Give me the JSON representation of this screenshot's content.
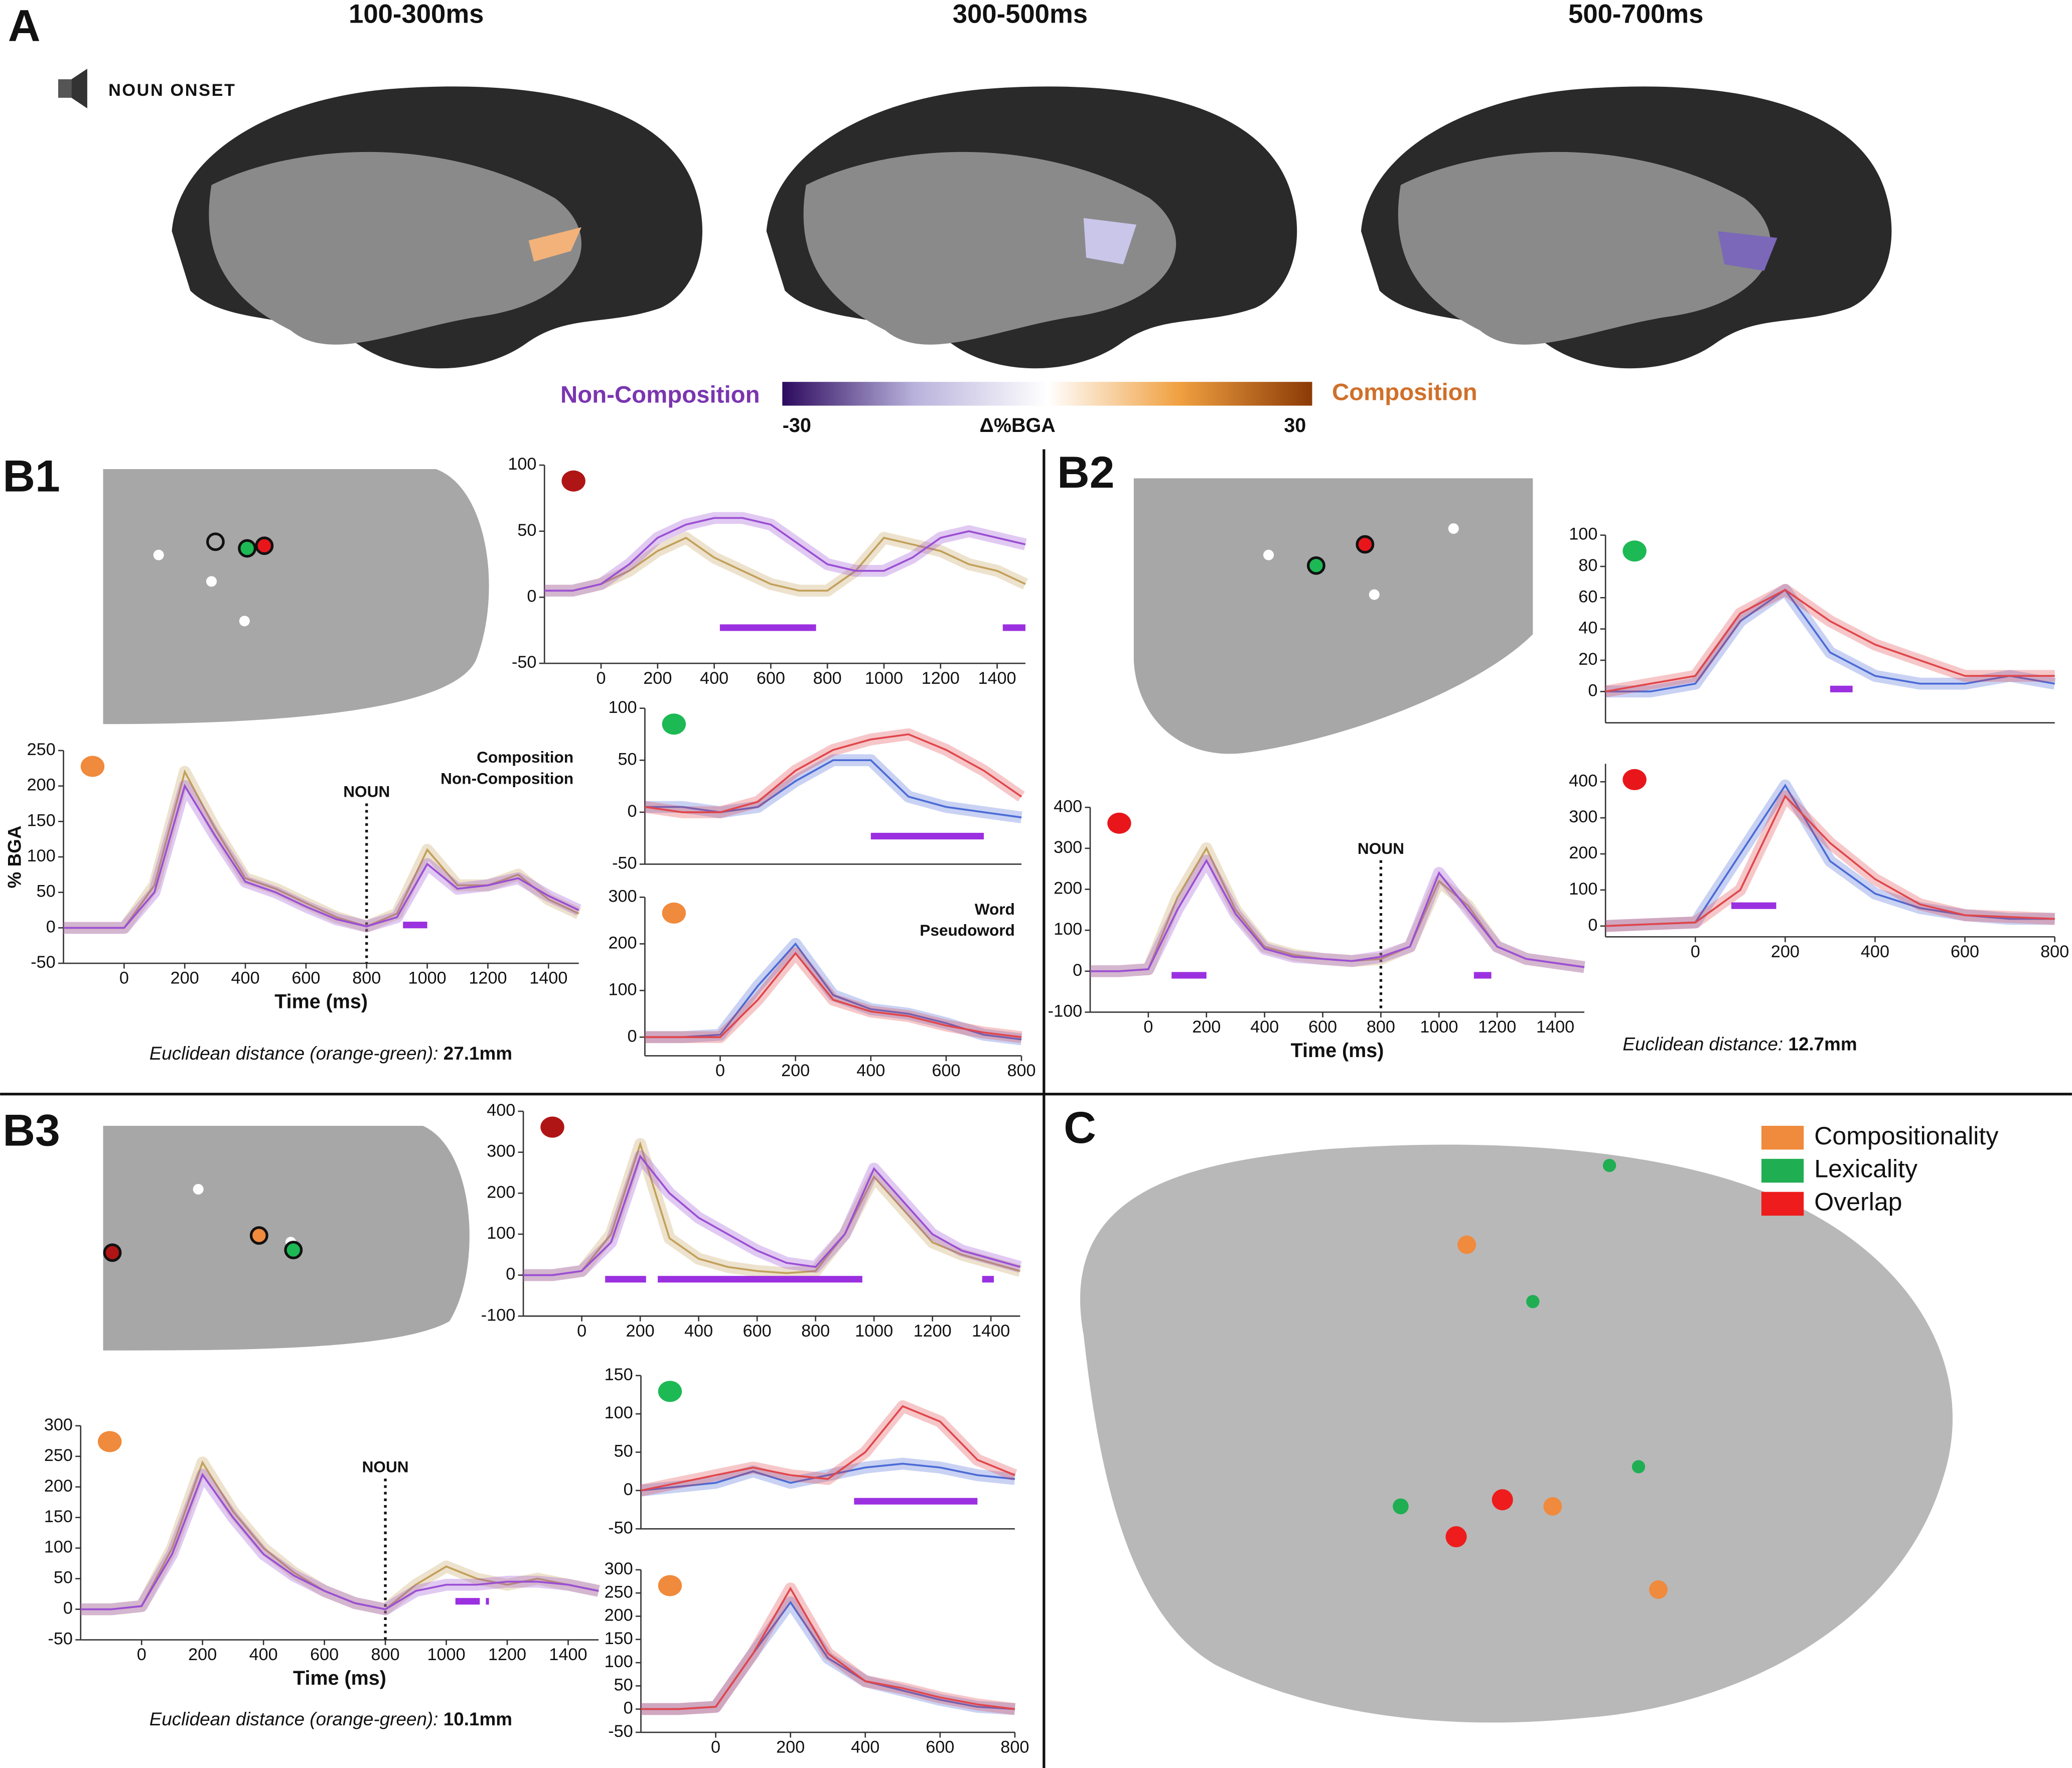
{
  "panel_labels": [
    "A",
    "B1",
    "B2",
    "B3",
    "C"
  ],
  "panel_a": {
    "titles": [
      "100-300ms",
      "300-500ms",
      "500-700ms"
    ],
    "note": "NOUN ONSET"
  },
  "colorbar": {
    "left_label": "Non-Composition",
    "right_label": "Composition",
    "label": "Δ%BGA",
    "min": -30,
    "max": 30,
    "colors": [
      "#2d0a5e",
      "#b9b3dc",
      "#ffffff",
      "#f0a040",
      "#8b3a06"
    ]
  },
  "distances": [
    {
      "label": "Euclidean distance (orange-green):",
      "value": "27.1mm"
    },
    {
      "label": "Euclidean distance:",
      "value": "12.7mm"
    },
    {
      "label": "Euclidean distance (orange-green):",
      "value": "10.1mm"
    }
  ],
  "panel_c": {
    "legend": [
      {
        "name": "Compositionality",
        "color": "#f08a3c"
      },
      {
        "name": "Lexicality",
        "color": "#1fae52"
      },
      {
        "name": "Overlap",
        "color": "#ee1c1c"
      }
    ]
  },
  "chart_data": [
    {
      "type": "line",
      "marker": "#b01515",
      "x": [
        -200,
        -100,
        0,
        100,
        200,
        300,
        400,
        500,
        600,
        700,
        800,
        900,
        1000,
        1100,
        1200,
        1300,
        1400,
        1500
      ],
      "xlim": [
        -200,
        1500
      ],
      "xticks": [
        0,
        200,
        400,
        600,
        800,
        1000,
        1200,
        1400
      ],
      "ylim": [
        -50,
        100
      ],
      "yticks": [
        -50,
        0,
        50,
        100
      ],
      "series": [
        {
          "color": "#c2a05a",
          "values": [
            5,
            5,
            10,
            20,
            35,
            45,
            30,
            20,
            10,
            5,
            5,
            20,
            45,
            40,
            35,
            25,
            20,
            10
          ]
        },
        {
          "color": "#9b4fd4",
          "values": [
            5,
            5,
            10,
            25,
            45,
            55,
            60,
            60,
            55,
            40,
            25,
            20,
            20,
            30,
            45,
            50,
            45,
            40
          ]
        }
      ],
      "significance": [
        [
          420,
          760
        ],
        [
          1420,
          1500
        ]
      ]
    },
    {
      "type": "line",
      "marker": "#f08a3c",
      "x": [
        -200,
        -100,
        0,
        100,
        200,
        300,
        400,
        500,
        600,
        700,
        800,
        900,
        1000,
        1100,
        1200,
        1300,
        1400,
        1500
      ],
      "xlim": [
        -200,
        1500
      ],
      "xticks": [
        0,
        200,
        400,
        600,
        800,
        1000,
        1200,
        1400
      ],
      "ylim": [
        -50,
        250
      ],
      "yticks": [
        -50,
        0,
        50,
        100,
        150,
        200,
        250
      ],
      "xlabel": "Time (ms)",
      "ylabel": "% BGA",
      "annotation": {
        "text": "NOUN",
        "x": 800
      },
      "series": [
        {
          "name": "Composition",
          "color": "#c2a05a",
          "values": [
            0,
            0,
            0,
            60,
            220,
            140,
            70,
            55,
            35,
            15,
            2,
            20,
            110,
            60,
            60,
            75,
            40,
            20
          ]
        },
        {
          "name": "Non-Composition",
          "color": "#9b4fd4",
          "values": [
            0,
            0,
            0,
            50,
            200,
            130,
            65,
            50,
            30,
            12,
            2,
            15,
            90,
            55,
            60,
            70,
            45,
            25
          ]
        }
      ],
      "significance": [
        [
          920,
          1000
        ]
      ]
    },
    {
      "type": "line",
      "marker": "#1db954",
      "x": [
        -200,
        -100,
        0,
        100,
        200,
        300,
        400,
        500,
        600,
        700,
        800
      ],
      "xlim": [
        -200,
        800
      ],
      "ylim": [
        -50,
        100
      ],
      "yticks": [
        -50,
        0,
        50,
        100
      ],
      "series": [
        {
          "color": "#4b6bd6",
          "values": [
            5,
            5,
            0,
            5,
            30,
            50,
            50,
            15,
            5,
            0,
            -5
          ]
        },
        {
          "color": "#e0474c",
          "values": [
            5,
            0,
            0,
            10,
            40,
            60,
            70,
            75,
            60,
            40,
            15
          ]
        }
      ],
      "significance": [
        [
          400,
          700
        ]
      ]
    },
    {
      "type": "line",
      "marker": "#f08a3c",
      "x": [
        -200,
        -100,
        0,
        100,
        200,
        300,
        400,
        500,
        600,
        700,
        800
      ],
      "xlim": [
        -200,
        800
      ],
      "xticks": [
        0,
        200,
        400,
        600,
        800
      ],
      "ylim": [
        -40,
        300
      ],
      "yticks": [
        0,
        100,
        200,
        300
      ],
      "series": [
        {
          "name": "Word",
          "color": "#4b6bd6",
          "values": [
            0,
            0,
            5,
            110,
            200,
            90,
            60,
            50,
            30,
            5,
            -5
          ]
        },
        {
          "name": "Pseudoword",
          "color": "#e0474c",
          "values": [
            0,
            0,
            0,
            80,
            180,
            80,
            55,
            45,
            25,
            10,
            0
          ]
        }
      ]
    },
    {
      "type": "line",
      "marker": "#e8161b",
      "x": [
        -200,
        -100,
        0,
        100,
        200,
        300,
        400,
        500,
        600,
        700,
        800,
        900,
        1000,
        1100,
        1200,
        1300,
        1400,
        1500
      ],
      "xlim": [
        -200,
        1500
      ],
      "xticks": [
        0,
        200,
        400,
        600,
        800,
        1000,
        1200,
        1400
      ],
      "ylim": [
        -100,
        400
      ],
      "yticks": [
        -100,
        0,
        100,
        200,
        300,
        400
      ],
      "xlabel": "Time (ms)",
      "annotation": {
        "text": "NOUN",
        "x": 800
      },
      "series": [
        {
          "color": "#c2a05a",
          "values": [
            0,
            0,
            5,
            180,
            300,
            150,
            60,
            40,
            30,
            25,
            30,
            60,
            220,
            160,
            60,
            30,
            20,
            10
          ]
        },
        {
          "color": "#9b4fd4",
          "values": [
            0,
            0,
            5,
            150,
            270,
            140,
            55,
            35,
            30,
            25,
            35,
            60,
            240,
            150,
            60,
            30,
            20,
            10
          ]
        }
      ],
      "significance": [
        [
          80,
          200
        ],
        [
          1120,
          1180
        ]
      ]
    },
    {
      "type": "line",
      "marker": "#1db954",
      "x": [
        -200,
        -100,
        0,
        100,
        200,
        300,
        400,
        500,
        600,
        700,
        800
      ],
      "xlim": [
        -200,
        800
      ],
      "ylim": [
        -20,
        100
      ],
      "yticks": [
        0,
        20,
        40,
        60,
        80,
        100
      ],
      "series": [
        {
          "color": "#4b6bd6",
          "values": [
            0,
            0,
            5,
            45,
            65,
            25,
            10,
            5,
            5,
            10,
            5
          ]
        },
        {
          "color": "#e0474c",
          "values": [
            0,
            5,
            10,
            50,
            65,
            45,
            30,
            20,
            10,
            10,
            10
          ]
        }
      ],
      "significance": [
        [
          300,
          350
        ]
      ]
    },
    {
      "type": "line",
      "marker": "#e8161b",
      "x": [
        -200,
        -100,
        0,
        100,
        200,
        300,
        400,
        500,
        600,
        700,
        800
      ],
      "xlim": [
        -200,
        800
      ],
      "xticks": [
        0,
        200,
        400,
        600,
        800
      ],
      "ylim": [
        -30,
        450
      ],
      "yticks": [
        0,
        100,
        200,
        300,
        400
      ],
      "series": [
        {
          "color": "#4b6bd6",
          "values": [
            0,
            5,
            10,
            200,
            390,
            180,
            90,
            50,
            30,
            20,
            20
          ]
        },
        {
          "color": "#e0474c",
          "values": [
            0,
            5,
            10,
            100,
            360,
            230,
            130,
            60,
            30,
            25,
            20
          ]
        }
      ],
      "significance": [
        [
          80,
          180
        ]
      ]
    },
    {
      "type": "line",
      "marker": "#b01515",
      "x": [
        -200,
        -100,
        0,
        100,
        200,
        300,
        400,
        500,
        600,
        700,
        800,
        900,
        1000,
        1100,
        1200,
        1300,
        1400,
        1500
      ],
      "xlim": [
        -200,
        1500
      ],
      "xticks": [
        0,
        200,
        400,
        600,
        800,
        1000,
        1200,
        1400
      ],
      "ylim": [
        -100,
        400
      ],
      "yticks": [
        -100,
        0,
        100,
        200,
        300,
        400
      ],
      "series": [
        {
          "color": "#c2a05a",
          "values": [
            0,
            0,
            10,
            100,
            320,
            90,
            40,
            20,
            10,
            5,
            10,
            100,
            240,
            160,
            80,
            50,
            30,
            10
          ]
        },
        {
          "color": "#9b4fd4",
          "values": [
            0,
            0,
            10,
            80,
            290,
            200,
            140,
            100,
            60,
            30,
            20,
            100,
            260,
            180,
            100,
            60,
            40,
            20
          ]
        }
      ],
      "significance": [
        [
          80,
          220
        ],
        [
          260,
          960
        ],
        [
          1370,
          1410
        ]
      ]
    },
    {
      "type": "line",
      "marker": "#f08a3c",
      "x": [
        -200,
        -100,
        0,
        100,
        200,
        300,
        400,
        500,
        600,
        700,
        800,
        900,
        1000,
        1100,
        1200,
        1300,
        1400,
        1500
      ],
      "xlim": [
        -200,
        1500
      ],
      "xticks": [
        0,
        200,
        400,
        600,
        800,
        1000,
        1200,
        1400
      ],
      "ylim": [
        -50,
        300
      ],
      "yticks": [
        -50,
        0,
        50,
        100,
        150,
        200,
        250,
        300
      ],
      "xlabel": "Time (ms)",
      "annotation": {
        "text": "NOUN",
        "x": 800
      },
      "series": [
        {
          "color": "#c2a05a",
          "values": [
            0,
            0,
            5,
            100,
            240,
            160,
            100,
            60,
            30,
            10,
            0,
            40,
            70,
            50,
            40,
            50,
            40,
            30
          ]
        },
        {
          "color": "#9b4fd4",
          "values": [
            0,
            0,
            5,
            90,
            220,
            150,
            90,
            55,
            30,
            10,
            0,
            30,
            40,
            40,
            45,
            45,
            40,
            30
          ]
        }
      ],
      "significance": [
        [
          1030,
          1110
        ],
        [
          1130,
          1140
        ]
      ]
    },
    {
      "type": "line",
      "marker": "#1db954",
      "x": [
        -200,
        -100,
        0,
        100,
        200,
        300,
        400,
        500,
        600,
        700,
        800
      ],
      "xlim": [
        -200,
        800
      ],
      "ylim": [
        -50,
        150
      ],
      "yticks": [
        -50,
        0,
        50,
        100,
        150
      ],
      "series": [
        {
          "color": "#4b6bd6",
          "values": [
            0,
            5,
            10,
            25,
            10,
            20,
            30,
            35,
            30,
            20,
            15
          ]
        },
        {
          "color": "#e0474c",
          "values": [
            0,
            10,
            20,
            30,
            20,
            15,
            50,
            110,
            90,
            40,
            20
          ]
        }
      ],
      "significance": [
        [
          370,
          700
        ]
      ]
    },
    {
      "type": "line",
      "marker": "#f08a3c",
      "x": [
        -200,
        -100,
        0,
        100,
        200,
        300,
        400,
        500,
        600,
        700,
        800
      ],
      "xlim": [
        -200,
        800
      ],
      "xticks": [
        0,
        200,
        400,
        600,
        800
      ],
      "ylim": [
        -50,
        300
      ],
      "yticks": [
        -50,
        0,
        50,
        100,
        150,
        200,
        250,
        300
      ],
      "series": [
        {
          "color": "#4b6bd6",
          "values": [
            0,
            0,
            5,
            120,
            230,
            110,
            60,
            40,
            20,
            5,
            0
          ]
        },
        {
          "color": "#e0474c",
          "values": [
            0,
            0,
            5,
            120,
            260,
            120,
            60,
            45,
            25,
            10,
            0
          ]
        }
      ]
    }
  ]
}
